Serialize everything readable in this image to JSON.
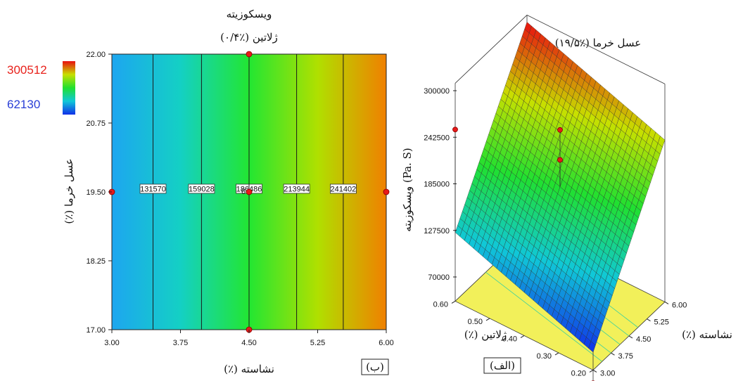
{
  "chart_data": [
    {
      "type": "heatmap",
      "panel_label": "(ب)",
      "title": "ویسکوزیته",
      "subtitle": "ژلاتین (٪۰/۴)",
      "xlabel": "نشاسته (٪)",
      "ylabel": "عسل خرما (٪)",
      "xlim": [
        3.0,
        6.0
      ],
      "ylim": [
        17.0,
        22.0
      ],
      "x_ticks": [
        "3.00",
        "3.75",
        "4.50",
        "5.25",
        "6.00"
      ],
      "y_ticks": [
        "17.00",
        "18.25",
        "19.50",
        "20.75",
        "22.00"
      ],
      "color_range": [
        62130,
        300512
      ],
      "legend": {
        "high": "300512",
        "low": "62130",
        "high_color": "#e8221c",
        "low_color": "#2a3fd6",
        "placement": "top-left"
      },
      "contours": [
        {
          "x": 3.45,
          "label": "131570"
        },
        {
          "x": 3.98,
          "label": "159028"
        },
        {
          "x": 4.5,
          "label": "186486"
        },
        {
          "x": 5.02,
          "label": "213944"
        },
        {
          "x": 5.53,
          "label": "241402"
        }
      ],
      "design_points": [
        {
          "x": 4.5,
          "y": 22.0
        },
        {
          "x": 4.5,
          "y": 17.0
        },
        {
          "x": 3.0,
          "y": 19.5
        },
        {
          "x": 6.0,
          "y": 19.5
        },
        {
          "x": 4.5,
          "y": 19.5
        }
      ],
      "center_point_count": "6"
    },
    {
      "type": "surface",
      "panel_label": "(الف)",
      "title": "عسل خرما (٪۱۹/۵)",
      "xlabel": "نشاسته (٪)",
      "ylabel": "ژلاتین (٪)",
      "zlabel": "ویسکوزیته (Pa. S)",
      "xlim": [
        3.0,
        6.0
      ],
      "ylim": [
        0.2,
        0.6
      ],
      "x_ticks": [
        "3.00",
        "3.75",
        "4.50",
        "5.25",
        "6.00"
      ],
      "y_ticks": [
        "0.20",
        "0.30",
        "0.40",
        "0.50",
        "0.60"
      ],
      "z_ticks": [
        "70000",
        "127500",
        "185000",
        "242500",
        "300000"
      ],
      "zlim": [
        70000,
        300000
      ],
      "surface_corners": {
        "x3_y0.2": 62130,
        "x6_y0.2": 240000,
        "x3_y0.6": 125000,
        "x6_y0.6": 300512
      },
      "points_above": [
        {
          "x": 3.0,
          "y": 0.6,
          "z": 252000
        },
        {
          "x": 4.5,
          "y": 0.4,
          "z": 252000
        },
        {
          "x": 4.5,
          "y": 0.4,
          "z": 215000
        }
      ],
      "points_below": [
        {
          "x": 4.5,
          "y": 0.4,
          "z": 200000
        },
        {
          "x": 3.0,
          "y": 0.2,
          "z": 70000
        },
        {
          "x": 6.0,
          "y": 0.6,
          "z": 245000
        }
      ]
    }
  ]
}
